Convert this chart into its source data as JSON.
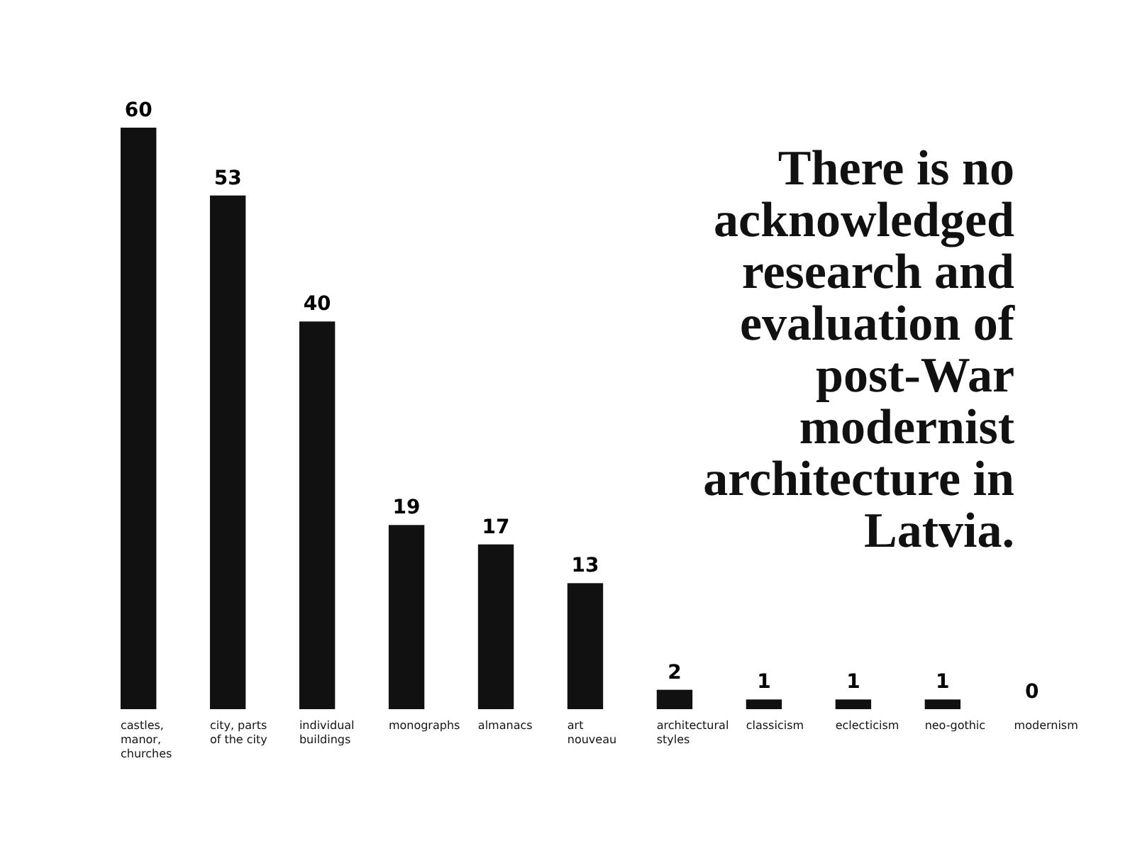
{
  "chart_data": {
    "type": "bar",
    "title": "There is no acknowledged research and evaluation of post-War modernist architecture in Latvia.",
    "categories": [
      "castles, manor, churches",
      "city, parts of the city",
      "individual buildings",
      "monographs",
      "almanacs",
      "art nouveau",
      "architectural styles",
      "classicism",
      "eclecticism",
      "neo-gothic",
      "modernism"
    ],
    "values": [
      60,
      53,
      40,
      19,
      17,
      13,
      2,
      1,
      1,
      1,
      0
    ],
    "color": "#111111",
    "ylim": [
      0,
      60
    ],
    "tick_labels": false,
    "data_labels": true,
    "grid": false
  }
}
